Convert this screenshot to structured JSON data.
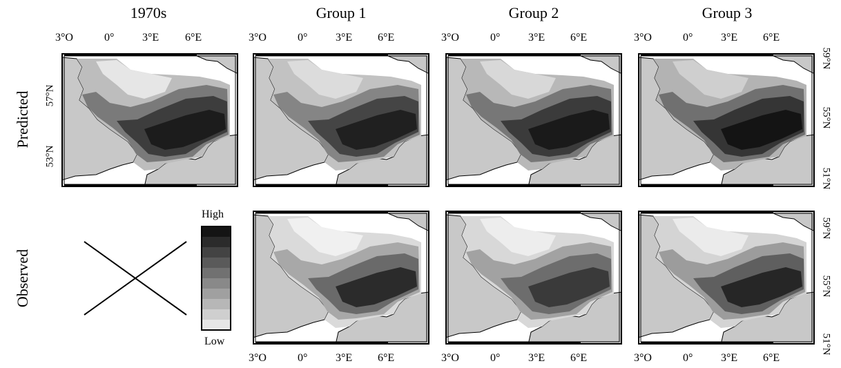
{
  "columns": [
    "1970s",
    "Group 1",
    "Group 2",
    "Group 3"
  ],
  "rows": [
    "Predicted",
    "Observed"
  ],
  "lon_ticks": [
    "3°O",
    "0°",
    "3°E",
    "6°E"
  ],
  "lat_ticks_left": [
    "57°N",
    "53°N"
  ],
  "lat_ticks_right": [
    "59°N",
    "55°N",
    "51°N"
  ],
  "legend": {
    "high": "High",
    "low": "Low",
    "levels": 10
  },
  "colors": {
    "land": "#c8c8c8",
    "sea_empty": "#ffffff",
    "frame": "#000000"
  },
  "missing_panel": "1970s-observed"
}
